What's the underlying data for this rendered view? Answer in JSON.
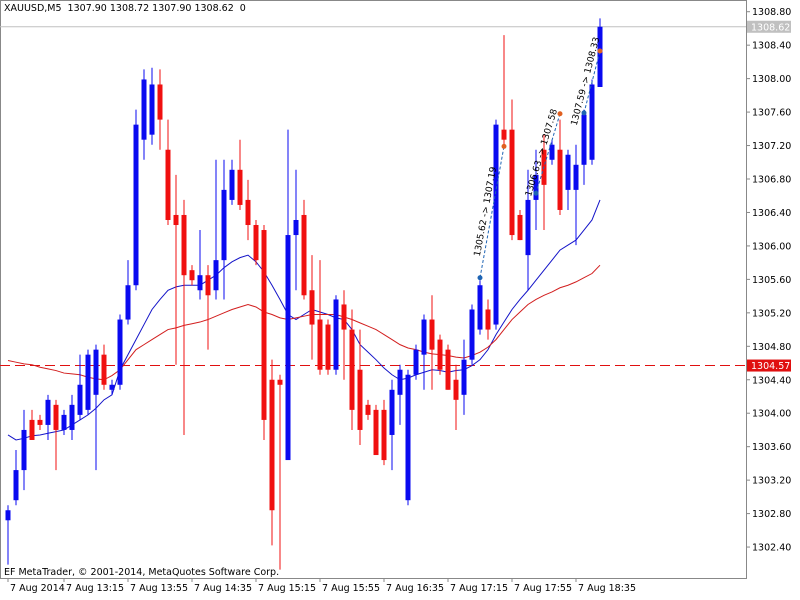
{
  "chart_data": {
    "type": "candlestick",
    "header": "XAUUSD,M5  1307.90 1308.72 1307.90 1308.62  0",
    "footer": "EF MetaTrader, © 2001-2014, MetaQuotes Software Corp.",
    "up_color": "#0a0af0",
    "down_color": "#f01010",
    "candles": [
      [
        1302.72,
        1302.9,
        1302.19,
        1302.84
      ],
      [
        1302.96,
        1303.56,
        1302.9,
        1303.32
      ],
      [
        1303.32,
        1304.04,
        1303.08,
        1303.8
      ],
      [
        1303.92,
        1304.04,
        1303.68,
        1303.68
      ],
      [
        1303.92,
        1303.98,
        1303.8,
        1303.86
      ],
      [
        1303.86,
        1304.22,
        1303.68,
        1304.16
      ],
      [
        1304.1,
        1304.16,
        1303.32,
        1303.8
      ],
      [
        1303.8,
        1304.04,
        1303.74,
        1303.98
      ],
      [
        1303.8,
        1304.22,
        1303.68,
        1304.1
      ],
      [
        1303.98,
        1304.7,
        1303.92,
        1304.34
      ],
      [
        1304.04,
        1304.76,
        1303.98,
        1304.7
      ],
      [
        1304.22,
        1304.82,
        1303.32,
        1304.76
      ],
      [
        1304.7,
        1304.82,
        1304.28,
        1304.34
      ],
      [
        1304.28,
        1304.4,
        1304.22,
        1304.34
      ],
      [
        1304.34,
        1305.18,
        1304.28,
        1305.12
      ],
      [
        1305.12,
        1305.83,
        1305.06,
        1305.53
      ],
      [
        1305.53,
        1307.63,
        1305.47,
        1307.45
      ],
      [
        1307.27,
        1308.11,
        1307.03,
        1307.99
      ],
      [
        1307.33,
        1308.13,
        1307.21,
        1307.93
      ],
      [
        1307.93,
        1308.11,
        1307.15,
        1307.51
      ],
      [
        1307.15,
        1307.51,
        1306.25,
        1306.31
      ],
      [
        1306.37,
        1306.85,
        1304.58,
        1306.25
      ],
      [
        1306.37,
        1306.55,
        1303.74,
        1305.65
      ],
      [
        1305.71,
        1305.77,
        1305.53,
        1305.59
      ],
      [
        1305.47,
        1306.19,
        1305.36,
        1305.65
      ],
      [
        1305.65,
        1305.77,
        1304.76,
        1305.41
      ],
      [
        1305.47,
        1307.03,
        1305.36,
        1305.83
      ],
      [
        1305.83,
        1307.03,
        1305.36,
        1306.67
      ],
      [
        1306.55,
        1307.03,
        1306.49,
        1306.91
      ],
      [
        1306.91,
        1307.27,
        1306.43,
        1306.49
      ],
      [
        1306.55,
        1306.79,
        1306.07,
        1306.25
      ],
      [
        1306.25,
        1306.31,
        1305.77,
        1305.83
      ],
      [
        1306.19,
        1306.25,
        1303.68,
        1303.92
      ],
      [
        1304.4,
        1304.64,
        1302.42,
        1302.84
      ],
      [
        1304.4,
        1304.46,
        1302.13,
        1304.34
      ],
      [
        1303.44,
        1307.39,
        1303.44,
        1306.13
      ],
      [
        1306.13,
        1306.91,
        1305.47,
        1306.31
      ],
      [
        1306.37,
        1306.55,
        1305.36,
        1305.41
      ],
      [
        1305.47,
        1305.89,
        1304.64,
        1305.06
      ],
      [
        1305.12,
        1305.83,
        1304.46,
        1304.52
      ],
      [
        1305.06,
        1305.12,
        1304.46,
        1304.52
      ],
      [
        1304.52,
        1305.41,
        1304.46,
        1305.36
      ],
      [
        1305.3,
        1305.47,
        1304.4,
        1305.0
      ],
      [
        1305.0,
        1305.24,
        1303.8,
        1304.04
      ],
      [
        1304.52,
        1305.0,
        1303.62,
        1303.8
      ],
      [
        1304.1,
        1304.16,
        1303.92,
        1303.98
      ],
      [
        1304.04,
        1304.1,
        1303.5,
        1303.5
      ],
      [
        1304.04,
        1304.16,
        1303.38,
        1303.44
      ],
      [
        1303.74,
        1304.4,
        1303.32,
        1304.28
      ],
      [
        1304.22,
        1304.58,
        1303.86,
        1304.52
      ],
      [
        1302.96,
        1304.52,
        1302.9,
        1304.46
      ],
      [
        1304.46,
        1304.82,
        1304.4,
        1304.76
      ],
      [
        1304.7,
        1305.18,
        1304.28,
        1305.12
      ],
      [
        1305.12,
        1305.41,
        1304.28,
        1304.76
      ],
      [
        1304.88,
        1304.94,
        1304.46,
        1304.52
      ],
      [
        1304.76,
        1304.82,
        1304.28,
        1304.28
      ],
      [
        1304.4,
        1304.58,
        1303.8,
        1304.16
      ],
      [
        1304.22,
        1304.88,
        1303.98,
        1304.64
      ],
      [
        1304.64,
        1305.3,
        1304.58,
        1305.24
      ],
      [
        1305.0,
        1305.59,
        1304.94,
        1305.53
      ],
      [
        1305.24,
        1305.36,
        1304.88,
        1305.0
      ],
      [
        1305.06,
        1307.51,
        1305.0,
        1307.45
      ],
      [
        1307.39,
        1308.52,
        1307.21,
        1307.27
      ],
      [
        1307.39,
        1307.75,
        1306.07,
        1306.13
      ],
      [
        1306.37,
        1306.43,
        1306.07,
        1306.07
      ],
      [
        1305.89,
        1306.91,
        1305.47,
        1306.55
      ],
      [
        1306.55,
        1307.15,
        1306.19,
        1306.85
      ],
      [
        1307.15,
        1307.33,
        1306.19,
        1306.73
      ],
      [
        1307.03,
        1307.27,
        1306.97,
        1307.21
      ],
      [
        1307.15,
        1307.51,
        1306.37,
        1306.43
      ],
      [
        1306.67,
        1307.15,
        1306.43,
        1307.09
      ],
      [
        1306.67,
        1307.21,
        1306.01,
        1306.97
      ],
      [
        1306.97,
        1307.63,
        1306.73,
        1307.57
      ],
      [
        1307.03,
        1307.99,
        1306.97,
        1307.93
      ],
      [
        1307.9,
        1308.72,
        1307.9,
        1308.62
      ]
    ],
    "series": [
      {
        "color": "#1414c8",
        "values": [
          1303.74,
          1303.68,
          1303.7,
          1303.73,
          1303.74,
          1303.76,
          1303.78,
          1303.8,
          1303.86,
          1303.92,
          1303.98,
          1304.06,
          1304.16,
          1304.22,
          1304.52,
          1304.7,
          1304.88,
          1305.06,
          1305.24,
          1305.36,
          1305.47,
          1305.51,
          1305.53,
          1305.53,
          1305.53,
          1305.59,
          1305.65,
          1305.74,
          1305.81,
          1305.86,
          1305.89,
          1305.81,
          1305.69,
          1305.53,
          1305.36,
          1305.18,
          1305.12,
          1305.18,
          1305.24,
          1305.21,
          1305.18,
          1305.14,
          1305.12,
          1305.0,
          1304.82,
          1304.73,
          1304.64,
          1304.54,
          1304.46,
          1304.4,
          1304.42,
          1304.46,
          1304.49,
          1304.52,
          1304.51,
          1304.49,
          1304.51,
          1304.52,
          1304.57,
          1304.64,
          1304.76,
          1304.94,
          1305.09,
          1305.24,
          1305.36,
          1305.47,
          1305.59,
          1305.71,
          1305.83,
          1305.95,
          1306.01,
          1306.07,
          1306.19,
          1306.31,
          1306.55
        ]
      },
      {
        "color": "#d21e1e",
        "values": [
          1304.63,
          1304.61,
          1304.59,
          1304.58,
          1304.55,
          1304.53,
          1304.51,
          1304.48,
          1304.47,
          1304.46,
          1304.43,
          1304.41,
          1304.4,
          1304.45,
          1304.52,
          1304.64,
          1304.76,
          1304.82,
          1304.88,
          1304.94,
          1305.0,
          1305.02,
          1305.05,
          1305.07,
          1305.09,
          1305.12,
          1305.16,
          1305.2,
          1305.24,
          1305.27,
          1305.3,
          1305.27,
          1305.21,
          1305.18,
          1305.14,
          1305.12,
          1305.14,
          1305.16,
          1305.18,
          1305.18,
          1305.18,
          1305.18,
          1305.15,
          1305.12,
          1305.08,
          1305.04,
          1305.0,
          1304.94,
          1304.88,
          1304.82,
          1304.78,
          1304.76,
          1304.73,
          1304.71,
          1304.7,
          1304.69,
          1304.67,
          1304.66,
          1304.69,
          1304.73,
          1304.79,
          1304.88,
          1305.0,
          1305.12,
          1305.21,
          1305.3,
          1305.36,
          1305.41,
          1305.45,
          1305.5,
          1305.53,
          1305.57,
          1305.62,
          1305.67,
          1305.77
        ]
      }
    ],
    "trades": [
      {
        "from": [
          59,
          1305.62
        ],
        "to": [
          62,
          1307.19
        ],
        "label": "1305.62 -> 1307.19"
      },
      {
        "from": [
          66,
          1306.63
        ],
        "to": [
          69,
          1307.58
        ],
        "label": "1306.63 -> 1307.58"
      },
      {
        "from": [
          72,
          1307.59
        ],
        "to": [
          74,
          1308.33
        ],
        "label": "1307.59 -> 1308.33"
      }
    ],
    "bid": 1308.62,
    "level": 1304.57,
    "level_color": "#e01010",
    "ylim": [
      1302.03,
      1308.94
    ],
    "yticks": [
      {
        "value": 1308.8,
        "label": "1308.80"
      },
      {
        "value": 1308.4,
        "label": "1308.40"
      },
      {
        "value": 1308,
        "label": "1308.00"
      },
      {
        "value": 1307.6,
        "label": "1307.60"
      },
      {
        "value": 1307.2,
        "label": "1307.20"
      },
      {
        "value": 1306.8,
        "label": "1306.80"
      },
      {
        "value": 1306.4,
        "label": "1306.40"
      },
      {
        "value": 1306,
        "label": "1306.00"
      },
      {
        "value": 1305.6,
        "label": "1305.60"
      },
      {
        "value": 1305.2,
        "label": "1305.20"
      },
      {
        "value": 1304.8,
        "label": "1304.80"
      },
      {
        "value": 1304.4,
        "label": "1304.40"
      },
      {
        "value": 1304,
        "label": "1304.00"
      },
      {
        "value": 1303.6,
        "label": "1303.60"
      },
      {
        "value": 1303.2,
        "label": "1303.20"
      },
      {
        "value": 1302.8,
        "label": "1302.80"
      },
      {
        "value": 1302.4,
        "label": "1302.40"
      }
    ],
    "xticks": [
      {
        "value": 0,
        "label": "7 Aug 2014"
      },
      {
        "value": 7,
        "label": "7 Aug 13:15"
      },
      {
        "value": 15,
        "label": "7 Aug 13:55"
      },
      {
        "value": 23,
        "label": "7 Aug 14:35"
      },
      {
        "value": 31,
        "label": "7 Aug 15:15"
      },
      {
        "value": 39,
        "label": "7 Aug 15:55"
      },
      {
        "value": 47,
        "label": "7 Aug 16:35"
      },
      {
        "value": 55,
        "label": "7 Aug 17:15"
      },
      {
        "value": 63,
        "label": "7 Aug 17:55"
      },
      {
        "value": 71,
        "label": "7 Aug 18:35"
      }
    ]
  }
}
